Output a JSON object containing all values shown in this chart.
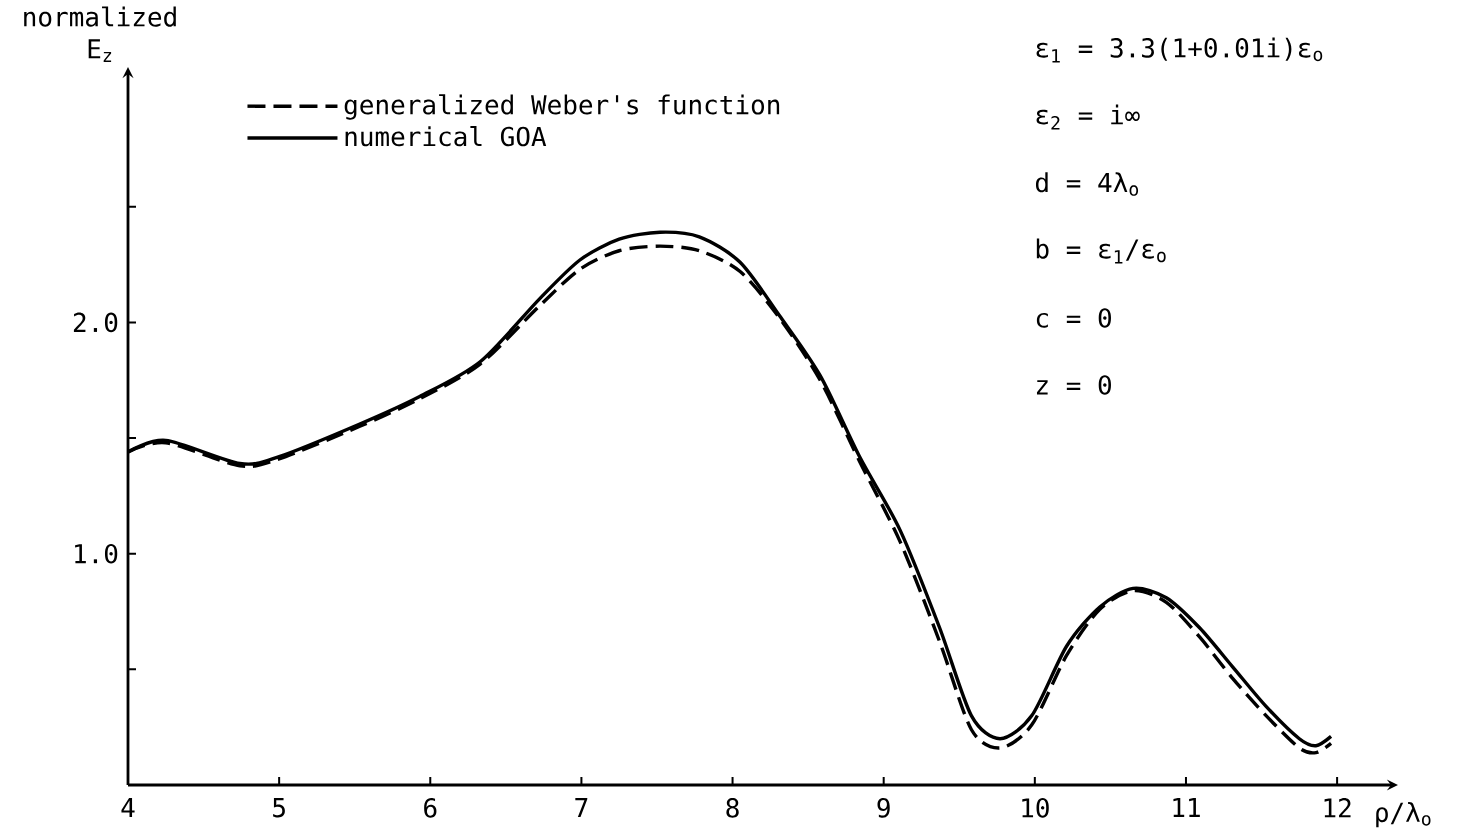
{
  "chart_data": {
    "type": "line",
    "xlabel": "ρ/λ$_{o}$",
    "ylabel": "normalized E$_{z}$",
    "annotations": [
      "ε$_{1}$ = 3.3(1+0.01i)ε$_{o}$",
      "ε$_{2}$ = i∞",
      "d  = 4λ$_{o}$",
      "b  = ε$_{1}$/ε$_{o}$",
      "c  = 0",
      "z  = 0"
    ],
    "x": [
      4.0,
      4.25,
      4.74,
      5.0,
      5.53,
      5.93,
      6.33,
      6.72,
      6.99,
      7.25,
      7.52,
      7.78,
      8.05,
      8.31,
      8.58,
      8.84,
      9.11,
      9.37,
      9.58,
      9.77,
      9.98,
      10.21,
      10.43,
      10.65,
      10.87,
      11.09,
      11.31,
      11.53,
      11.75,
      11.86,
      11.96
    ],
    "series": [
      {
        "name": "generalized Weber's function",
        "color": "#000000",
        "line_style": "dashed",
        "values": [
          1.44,
          1.48,
          1.38,
          1.41,
          1.55,
          1.67,
          1.82,
          2.07,
          2.23,
          2.31,
          2.33,
          2.31,
          2.22,
          2.02,
          1.75,
          1.4,
          1.05,
          0.62,
          0.24,
          0.16,
          0.26,
          0.56,
          0.76,
          0.84,
          0.79,
          0.64,
          0.46,
          0.3,
          0.16,
          0.14,
          0.18
        ]
      },
      {
        "name": "numerical GOA",
        "color": "#000000",
        "line_style": "solid",
        "values": [
          1.44,
          1.49,
          1.39,
          1.42,
          1.56,
          1.68,
          1.83,
          2.1,
          2.27,
          2.36,
          2.39,
          2.37,
          2.26,
          2.03,
          1.77,
          1.42,
          1.1,
          0.68,
          0.3,
          0.2,
          0.3,
          0.6,
          0.77,
          0.85,
          0.81,
          0.68,
          0.51,
          0.34,
          0.2,
          0.17,
          0.21
        ]
      }
    ],
    "xlim": [
      4,
      12.35
    ],
    "ylim": [
      0,
      3.07
    ],
    "xticks": [
      4,
      5,
      6,
      7,
      8,
      9,
      10,
      11,
      12
    ],
    "yticks": [
      {
        "value": 0.5,
        "label": null
      },
      {
        "value": 1,
        "label": "1.0"
      },
      {
        "value": 1.5,
        "label": null
      },
      {
        "value": 2,
        "label": "2.0"
      },
      {
        "value": 2.5,
        "label": null
      }
    ],
    "legend": "top left"
  }
}
